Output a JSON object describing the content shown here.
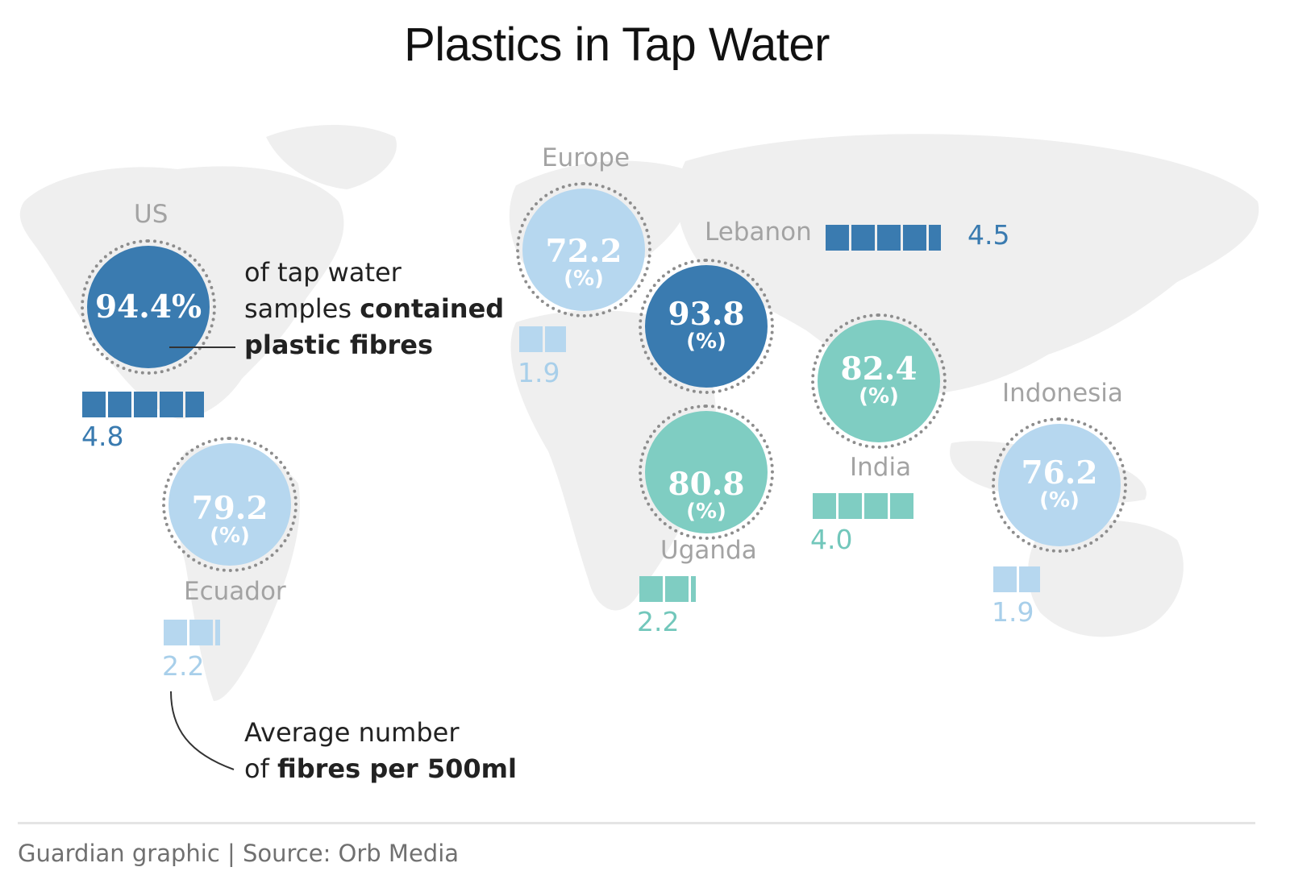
{
  "title": "Plastics in Tap Water",
  "legend": {
    "circle_note": {
      "plain1": "of tap water",
      "plain2": "samples ",
      "bold2": "contained",
      "bold3": "plastic fibres"
    },
    "bar_note": {
      "plain1": "Average number",
      "plain2": "of ",
      "bold2": "fibres per 500ml"
    }
  },
  "regions": [
    {
      "name": "US",
      "percent": 94.4,
      "percent_label": "94.4%",
      "unit_label": "",
      "fibres": 4.8,
      "fibres_label": "4.8",
      "color": "#3a7bb0",
      "text_color": "#3a7bb0"
    },
    {
      "name": "Europe",
      "percent": 72.2,
      "percent_label": "72.2",
      "unit_label": "(%)",
      "fibres": 1.9,
      "fibres_label": "1.9",
      "color": "#b6d7ef",
      "text_color": "#a8cfea"
    },
    {
      "name": "Lebanon",
      "percent": 93.8,
      "percent_label": "93.8",
      "unit_label": "(%)",
      "fibres": 4.5,
      "fibres_label": "4.5",
      "color": "#3a7bb0",
      "text_color": "#3a7bb0"
    },
    {
      "name": "India",
      "percent": 82.4,
      "percent_label": "82.4",
      "unit_label": "(%)",
      "fibres": 4.0,
      "fibres_label": "4.0",
      "color": "#7fcdc2",
      "text_color": "#72c7bb"
    },
    {
      "name": "Indonesia",
      "percent": 76.2,
      "percent_label": "76.2",
      "unit_label": "(%)",
      "fibres": 1.9,
      "fibres_label": "1.9",
      "color": "#b6d7ef",
      "text_color": "#a8cfea"
    },
    {
      "name": "Uganda",
      "percent": 80.8,
      "percent_label": "80.8",
      "unit_label": "(%)",
      "fibres": 2.2,
      "fibres_label": "2.2",
      "color": "#7fcdc2",
      "text_color": "#72c7bb"
    },
    {
      "name": "Ecuador",
      "percent": 79.2,
      "percent_label": "79.2",
      "unit_label": "(%)",
      "fibres": 2.2,
      "fibres_label": "2.2",
      "color": "#b6d7ef",
      "text_color": "#a8cfea"
    }
  ],
  "source": "Guardian graphic | Source: Orb Media"
}
